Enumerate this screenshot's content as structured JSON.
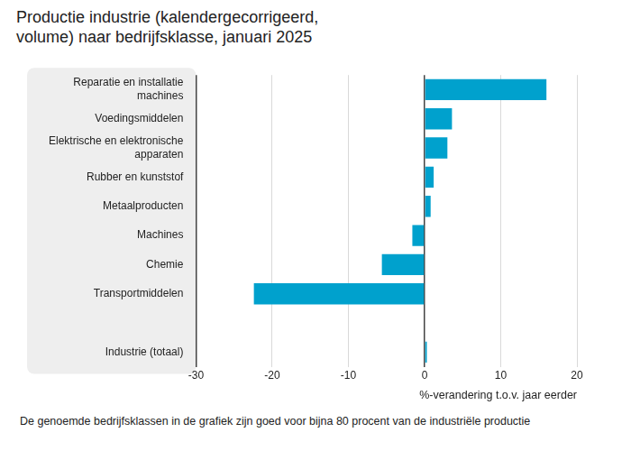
{
  "chart_data": {
    "type": "bar",
    "title": "Productie industrie (kalendergecorrigeerd, volume) naar bedrijfsklasse, januari 2025",
    "x_label": "%-verandering t.o.v. jaar eerder",
    "footnote": "De genoemde bedrijfsklassen in de grafiek zijn goed voor bijna 80 procent van de industriële productie",
    "categories": [
      "Reparatie en installatie machines",
      "Voedingsmiddelen",
      "Elektrische en elektronische apparaten",
      "Rubber en kunststof",
      "Metaalproducten",
      "Machines",
      "Chemie",
      "Transportmiddelen",
      null,
      "Industrie (totaal)"
    ],
    "values": [
      16,
      3.6,
      3,
      1.2,
      0.8,
      -1.6,
      -5.6,
      -22.4,
      null,
      0.3
    ],
    "color": "#00a1cd",
    "orientation": "horizontal",
    "xlim": [
      -30,
      20
    ],
    "xticks": [
      -30,
      -20,
      -10,
      0,
      10,
      20
    ],
    "grid": true,
    "data_labels": false
  }
}
